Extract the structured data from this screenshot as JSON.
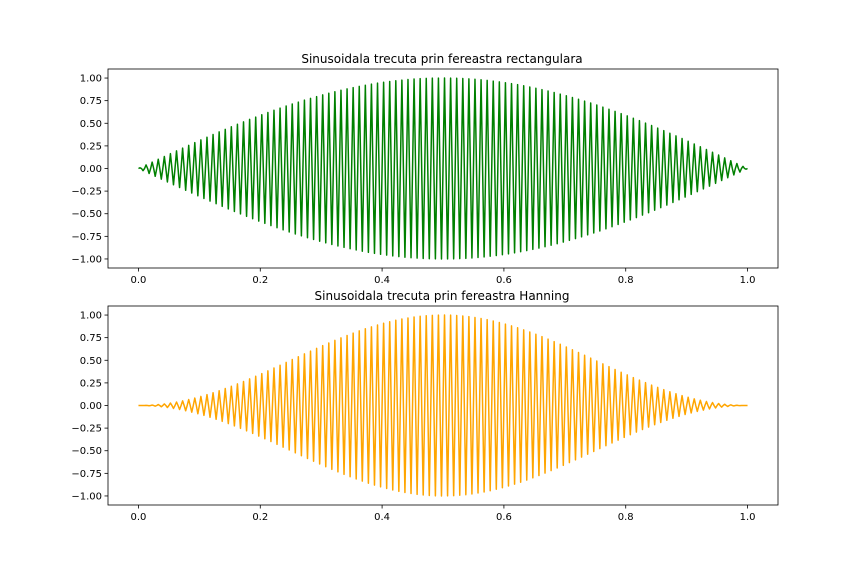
{
  "chart_data": [
    {
      "type": "line",
      "title": "Sinusoidala trecuta prin fereastra rectangulara",
      "xlabel": "",
      "ylabel": "",
      "xlim": [
        -0.05,
        1.05
      ],
      "ylim": [
        -1.1,
        1.1
      ],
      "xticks": [
        0.0,
        0.2,
        0.4,
        0.6,
        0.8,
        1.0
      ],
      "xtick_labels": [
        "0.0",
        "0.2",
        "0.4",
        "0.6",
        "0.8",
        "1.0"
      ],
      "yticks": [
        -1.0,
        -0.75,
        -0.5,
        -0.25,
        0.0,
        0.25,
        0.5,
        0.75,
        1.0
      ],
      "ytick_labels": [
        "−1.00",
        "−0.75",
        "−0.50",
        "−0.25",
        "0.00",
        "0.25",
        "0.50",
        "0.75",
        "1.00"
      ],
      "grid": false,
      "color": "#008000",
      "series": [
        {
          "function": "sin(pi*x) * sin(2*pi*100*x)",
          "x_range": [
            0.0,
            1.0
          ],
          "cycles": 100,
          "envelope": "sine"
        }
      ]
    },
    {
      "type": "line",
      "title": "Sinusoidala trecuta prin fereastra Hanning",
      "xlabel": "",
      "ylabel": "",
      "xlim": [
        -0.05,
        1.05
      ],
      "ylim": [
        -1.1,
        1.1
      ],
      "xticks": [
        0.0,
        0.2,
        0.4,
        0.6,
        0.8,
        1.0
      ],
      "xtick_labels": [
        "0.0",
        "0.2",
        "0.4",
        "0.6",
        "0.8",
        "1.0"
      ],
      "yticks": [
        -1.0,
        -0.75,
        -0.5,
        -0.25,
        0.0,
        0.25,
        0.5,
        0.75,
        1.0
      ],
      "ytick_labels": [
        "−1.00",
        "−0.75",
        "−0.50",
        "−0.25",
        "0.00",
        "0.25",
        "0.50",
        "0.75",
        "1.00"
      ],
      "grid": false,
      "color": "#FFA500",
      "series": [
        {
          "function": "0.5*(1-cos(2*pi*x)) * sin(2*pi*100*x)",
          "x_range": [
            0.0,
            1.0
          ],
          "cycles": 100,
          "envelope": "hanning"
        }
      ]
    }
  ]
}
